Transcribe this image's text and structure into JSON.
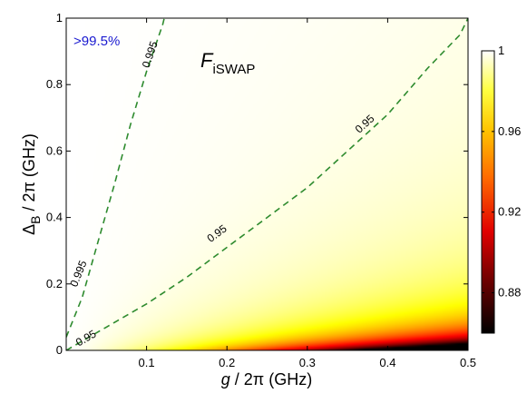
{
  "chart_data": {
    "type": "heatmap",
    "title_main": "F",
    "title_sub": "iSWAP",
    "xlabel": "g / 2π  (GHz)",
    "ylabel_parts": {
      "delta": "Δ",
      "sub": "B",
      "rest": "/ 2π  (GHz)"
    },
    "xlim": [
      0,
      0.5
    ],
    "ylim": [
      0,
      1
    ],
    "x_ticks": [
      0.1,
      0.2,
      0.3,
      0.4,
      0.5
    ],
    "x_tick_labels": [
      "0.1",
      "0.2",
      "0.3",
      "0.4",
      "0.5"
    ],
    "y_ticks": [
      0,
      0.2,
      0.4,
      0.6,
      0.8,
      1
    ],
    "y_tick_labels": [
      "0",
      "0.2",
      "0.4",
      "0.6",
      "0.8",
      "1"
    ],
    "colorbar": {
      "range": [
        0.86,
        1.0
      ],
      "colormap": "hot",
      "ticks": [
        0.88,
        0.92,
        0.96,
        1
      ],
      "tick_labels": [
        "0.88",
        "0.92",
        "0.96",
        "1"
      ]
    },
    "annotation": {
      "text": ">99.5%",
      "color": "#1a1ad0"
    },
    "contours": [
      {
        "level": 0.995,
        "color": "#2e8b2e",
        "style": "dashed",
        "label": "0.995",
        "points": [
          [
            0.0,
            0.04
          ],
          [
            0.02,
            0.16
          ],
          [
            0.04,
            0.33
          ],
          [
            0.06,
            0.5
          ],
          [
            0.08,
            0.68
          ],
          [
            0.1,
            0.84
          ],
          [
            0.12,
            0.98
          ],
          [
            0.122,
            1.0
          ]
        ]
      },
      {
        "level": 0.95,
        "color": "#2e8b2e",
        "style": "dashed",
        "label": "0.95",
        "points": [
          [
            0.0,
            0.0
          ],
          [
            0.05,
            0.07
          ],
          [
            0.1,
            0.14
          ],
          [
            0.15,
            0.22
          ],
          [
            0.2,
            0.31
          ],
          [
            0.25,
            0.4
          ],
          [
            0.3,
            0.49
          ],
          [
            0.35,
            0.6
          ],
          [
            0.4,
            0.71
          ],
          [
            0.45,
            0.85
          ],
          [
            0.49,
            0.95
          ],
          [
            0.5,
            1.0
          ]
        ]
      }
    ],
    "contour_label_positions": [
      {
        "text": "0.995",
        "x": 0.016,
        "y": 0.23
      },
      {
        "text": "0.995",
        "x": 0.105,
        "y": 0.89
      },
      {
        "text": "0.95",
        "x": 0.025,
        "y": 0.035
      },
      {
        "text": "0.95",
        "x": 0.188,
        "y": 0.35
      },
      {
        "text": "0.95",
        "x": 0.372,
        "y": 0.68
      }
    ],
    "grid": false
  }
}
